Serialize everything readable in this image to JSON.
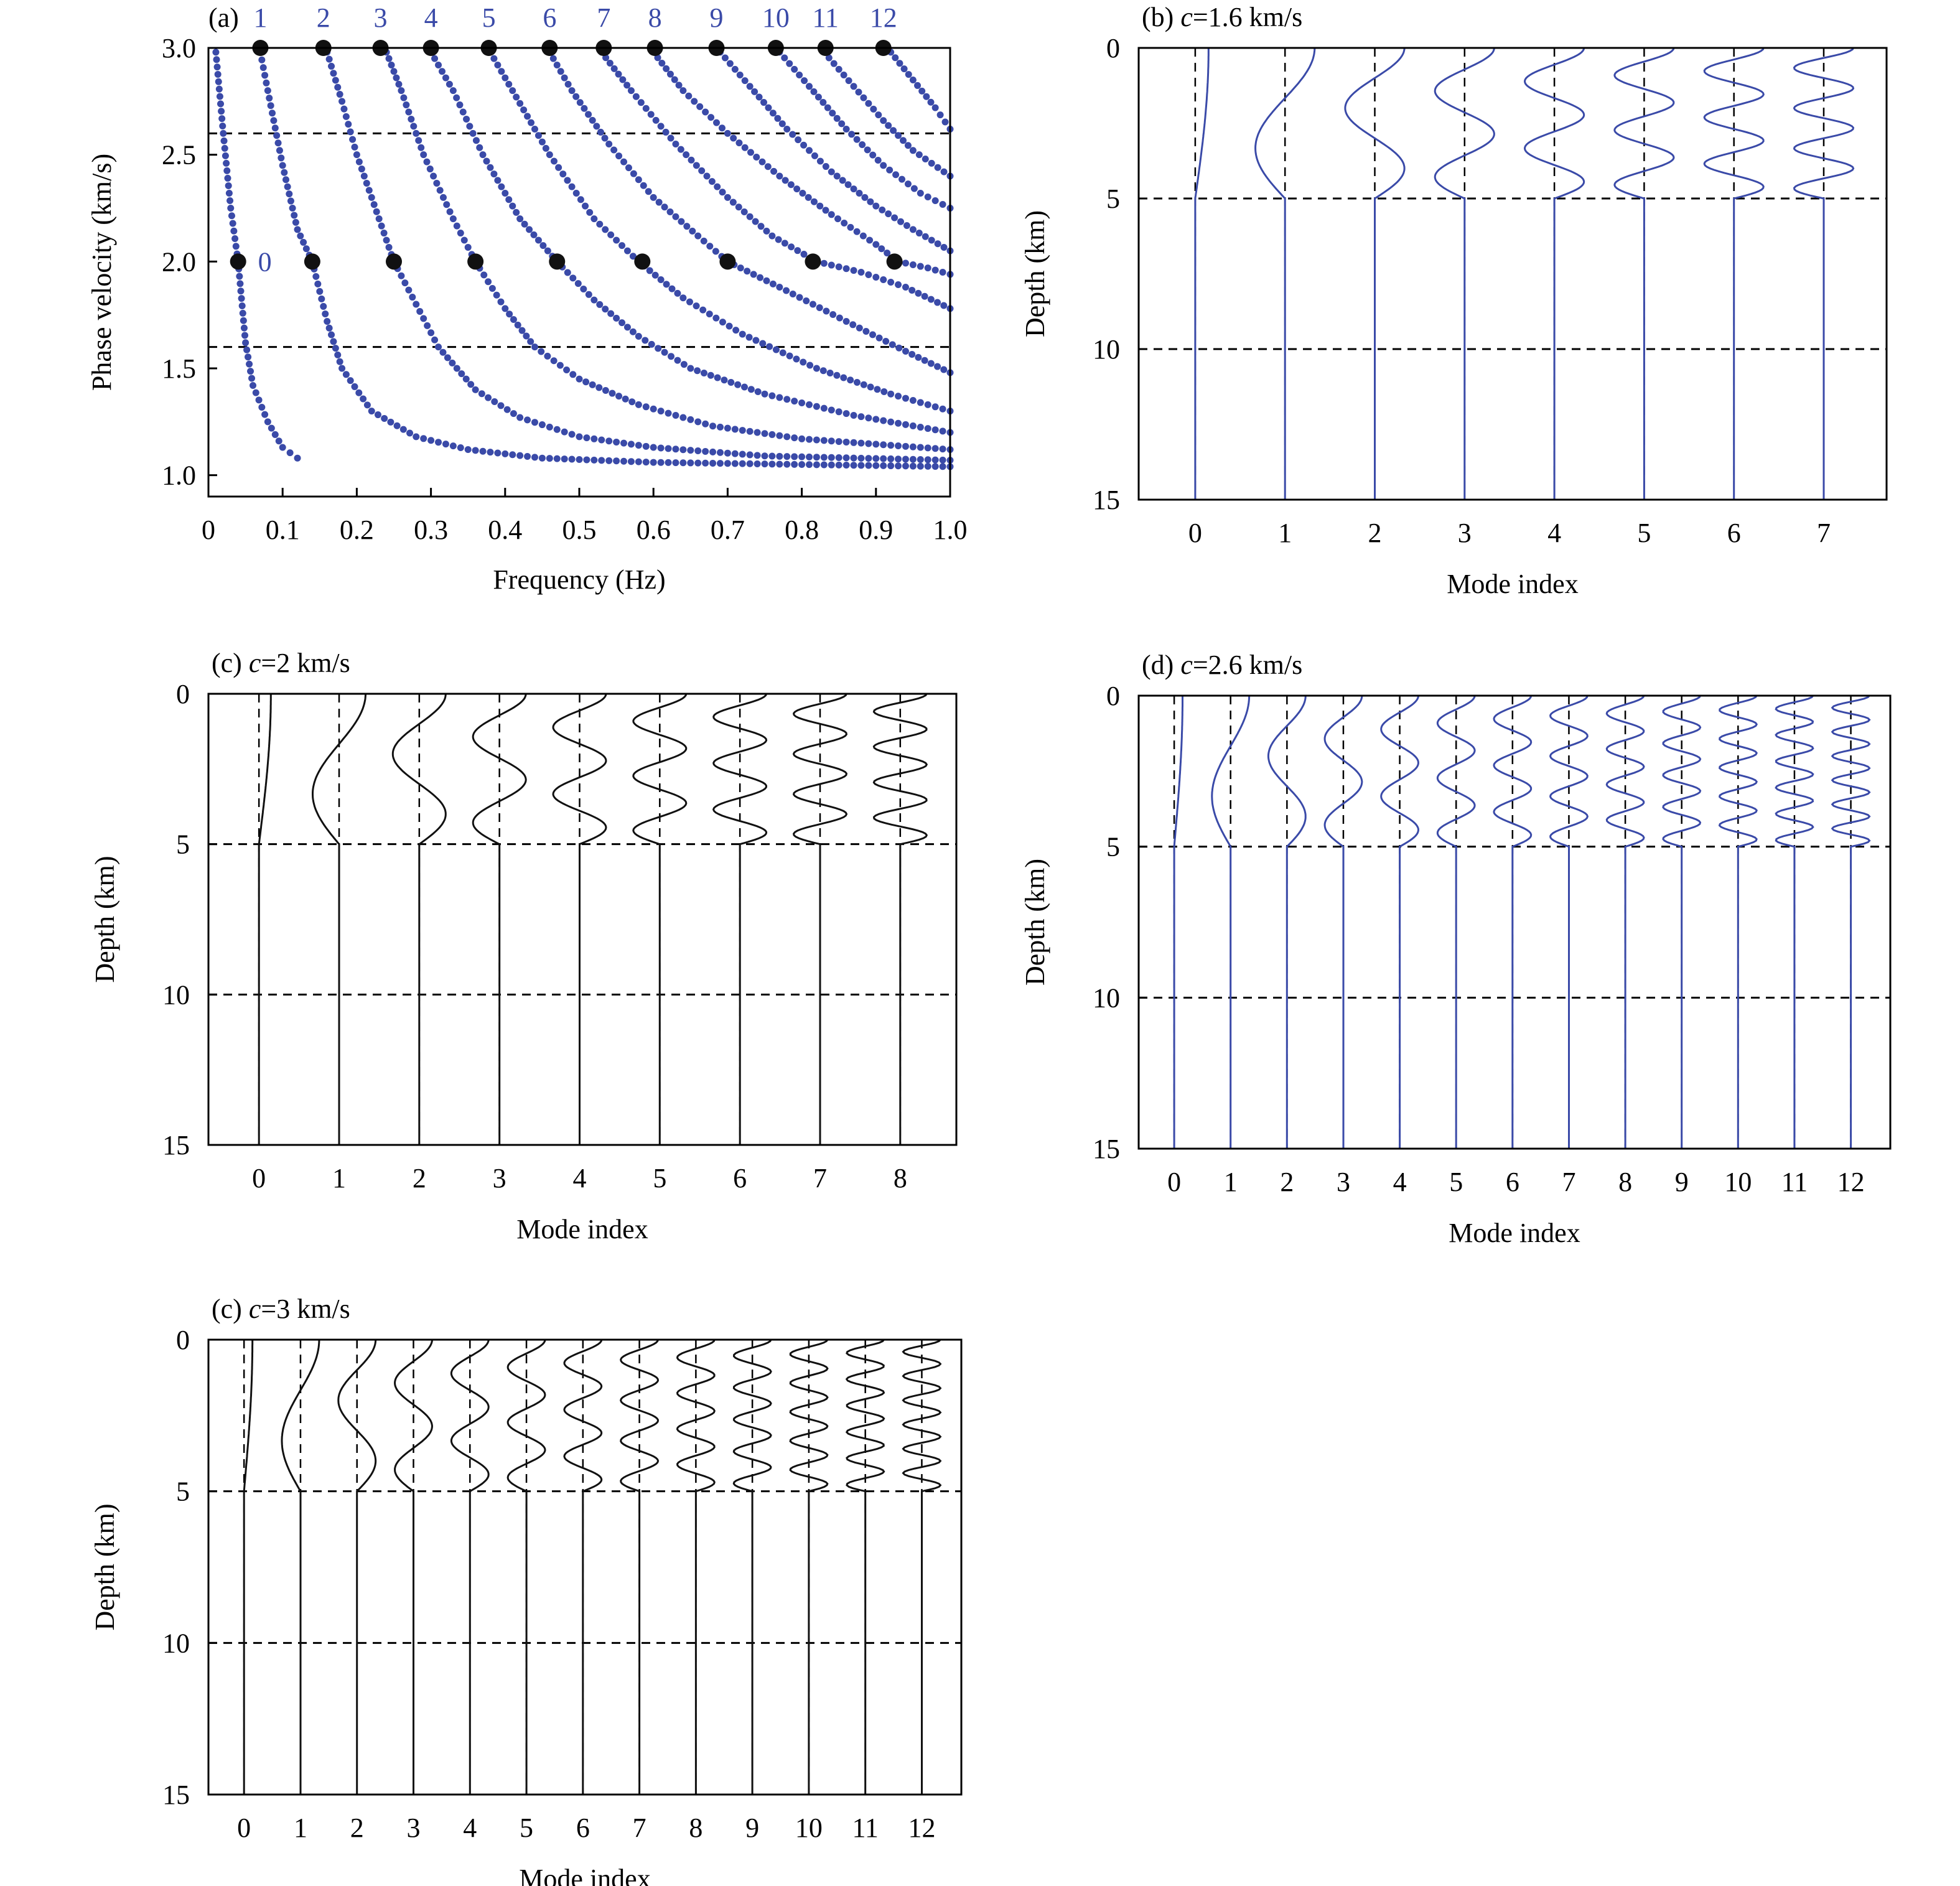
{
  "colors": {
    "blue": "#3a4aa8",
    "black": "#111111",
    "axis": "#000000"
  },
  "chart_data": [
    {
      "id": "a",
      "type": "scatter",
      "panel_label": "(a)",
      "xlabel": "Frequency (Hz)",
      "ylabel": "Phase velocity (km/s)",
      "xlim": [
        0,
        1.0
      ],
      "ylim": [
        0.9,
        3.0
      ],
      "xticks": [
        0,
        0.1,
        0.2,
        0.3,
        0.4,
        0.5,
        0.6,
        0.7,
        0.8,
        0.9,
        1.0
      ],
      "xtick_labels": [
        "0",
        "0.1",
        "0.2",
        "0.3",
        "0.4",
        "0.5",
        "0.6",
        "0.7",
        "0.8",
        "0.9",
        "1.0"
      ],
      "yticks": [
        1.0,
        1.5,
        2.0,
        2.5,
        3.0
      ],
      "ytick_labels": [
        "1.0",
        "1.5",
        "2.0",
        "2.5",
        "3.0"
      ],
      "hlines": [
        2.6,
        1.6
      ],
      "mode_labels_top": [
        "1",
        "2",
        "3",
        "4",
        "5",
        "6",
        "7",
        "8",
        "9",
        "10",
        "11",
        "12"
      ],
      "mode_label_zero": "0",
      "series": [
        {
          "mode": 0,
          "points": [
            [
              0.01,
              2.98
            ],
            [
              0.02,
              2.6
            ],
            [
              0.03,
              2.25
            ],
            [
              0.04,
              2.0
            ],
            [
              0.05,
              1.62
            ],
            [
              0.06,
              1.42
            ],
            [
              0.08,
              1.25
            ],
            [
              0.1,
              1.13
            ],
            [
              0.12,
              1.08
            ]
          ]
        },
        {
          "mode": 1,
          "points": [
            [
              0.07,
              2.98
            ],
            [
              0.08,
              2.8
            ],
            [
              0.1,
              2.45
            ],
            [
              0.12,
              2.15
            ],
            [
              0.14,
              2.0
            ],
            [
              0.16,
              1.72
            ],
            [
              0.18,
              1.5
            ],
            [
              0.22,
              1.3
            ],
            [
              0.28,
              1.18
            ],
            [
              0.35,
              1.12
            ],
            [
              0.45,
              1.08
            ],
            [
              0.6,
              1.06
            ],
            [
              0.8,
              1.05
            ],
            [
              1.0,
              1.04
            ]
          ]
        },
        {
          "mode": 2,
          "points": [
            [
              0.16,
              2.98
            ],
            [
              0.18,
              2.75
            ],
            [
              0.2,
              2.5
            ],
            [
              0.23,
              2.2
            ],
            [
              0.25,
              2.0
            ],
            [
              0.28,
              1.8
            ],
            [
              0.31,
              1.6
            ],
            [
              0.36,
              1.4
            ],
            [
              0.42,
              1.27
            ],
            [
              0.5,
              1.18
            ],
            [
              0.6,
              1.13
            ],
            [
              0.75,
              1.09
            ],
            [
              1.0,
              1.07
            ]
          ]
        },
        {
          "mode": 3,
          "points": [
            [
              0.24,
              2.98
            ],
            [
              0.26,
              2.8
            ],
            [
              0.29,
              2.5
            ],
            [
              0.33,
              2.2
            ],
            [
              0.36,
              2.0
            ],
            [
              0.4,
              1.78
            ],
            [
              0.44,
              1.6
            ],
            [
              0.5,
              1.45
            ],
            [
              0.58,
              1.33
            ],
            [
              0.68,
              1.23
            ],
            [
              0.8,
              1.17
            ],
            [
              1.0,
              1.12
            ]
          ]
        },
        {
          "mode": 4,
          "points": [
            [
              0.3,
              2.98
            ],
            [
              0.33,
              2.8
            ],
            [
              0.37,
              2.5
            ],
            [
              0.42,
              2.2
            ],
            [
              0.47,
              2.0
            ],
            [
              0.52,
              1.82
            ],
            [
              0.58,
              1.65
            ],
            [
              0.65,
              1.5
            ],
            [
              0.75,
              1.38
            ],
            [
              0.87,
              1.28
            ],
            [
              1.0,
              1.2
            ]
          ]
        },
        {
          "mode": 5,
          "points": [
            [
              0.38,
              2.98
            ],
            [
              0.41,
              2.8
            ],
            [
              0.46,
              2.5
            ],
            [
              0.52,
              2.2
            ],
            [
              0.58,
              2.0
            ],
            [
              0.64,
              1.83
            ],
            [
              0.72,
              1.66
            ],
            [
              0.82,
              1.5
            ],
            [
              0.92,
              1.38
            ],
            [
              1.0,
              1.3
            ]
          ]
        },
        {
          "mode": 6,
          "points": [
            [
              0.46,
              2.98
            ],
            [
              0.49,
              2.8
            ],
            [
              0.54,
              2.55
            ],
            [
              0.6,
              2.3
            ],
            [
              0.66,
              2.12
            ],
            [
              0.7,
              2.0
            ],
            [
              0.77,
              1.88
            ],
            [
              0.86,
              1.72
            ],
            [
              0.94,
              1.58
            ],
            [
              1.0,
              1.48
            ]
          ]
        },
        {
          "mode": 7,
          "points": [
            [
              0.53,
              2.98
            ],
            [
              0.57,
              2.8
            ],
            [
              0.63,
              2.55
            ],
            [
              0.7,
              2.3
            ],
            [
              0.76,
              2.12
            ],
            [
              0.82,
              2.0
            ],
            [
              0.88,
              1.95
            ],
            [
              0.94,
              1.88
            ],
            [
              1.0,
              1.78
            ]
          ]
        },
        {
          "mode": 8,
          "points": [
            [
              0.6,
              2.98
            ],
            [
              0.64,
              2.8
            ],
            [
              0.7,
              2.6
            ],
            [
              0.77,
              2.4
            ],
            [
              0.84,
              2.22
            ],
            [
              0.9,
              2.08
            ],
            [
              0.93,
              2.0
            ],
            [
              0.97,
              1.97
            ],
            [
              1.0,
              1.94
            ]
          ]
        },
        {
          "mode": 9,
          "points": [
            [
              0.69,
              2.98
            ],
            [
              0.73,
              2.82
            ],
            [
              0.78,
              2.62
            ],
            [
              0.84,
              2.42
            ],
            [
              0.9,
              2.26
            ],
            [
              0.95,
              2.15
            ],
            [
              1.0,
              2.05
            ]
          ]
        },
        {
          "mode": 10,
          "points": [
            [
              0.77,
              2.98
            ],
            [
              0.81,
              2.82
            ],
            [
              0.86,
              2.62
            ],
            [
              0.91,
              2.45
            ],
            [
              0.96,
              2.32
            ],
            [
              1.0,
              2.25
            ]
          ]
        },
        {
          "mode": 11,
          "points": [
            [
              0.83,
              2.98
            ],
            [
              0.87,
              2.82
            ],
            [
              0.91,
              2.66
            ],
            [
              0.95,
              2.52
            ],
            [
              1.0,
              2.4
            ]
          ]
        },
        {
          "mode": 12,
          "points": [
            [
              0.92,
              2.98
            ],
            [
              0.95,
              2.85
            ],
            [
              0.98,
              2.72
            ],
            [
              1.0,
              2.62
            ]
          ]
        }
      ],
      "highlight_points": [
        [
          0.07,
          3.0
        ],
        [
          0.155,
          3.0
        ],
        [
          0.232,
          3.0
        ],
        [
          0.3,
          3.0
        ],
        [
          0.378,
          3.0
        ],
        [
          0.46,
          3.0
        ],
        [
          0.533,
          3.0
        ],
        [
          0.602,
          3.0
        ],
        [
          0.685,
          3.0
        ],
        [
          0.765,
          3.0
        ],
        [
          0.832,
          3.0
        ],
        [
          0.91,
          3.0
        ],
        [
          0.04,
          2.0
        ],
        [
          0.14,
          2.0
        ],
        [
          0.25,
          2.0
        ],
        [
          0.36,
          2.0
        ],
        [
          0.47,
          2.0
        ],
        [
          0.585,
          2.0
        ],
        [
          0.7,
          2.0
        ],
        [
          0.815,
          2.0
        ],
        [
          0.925,
          2.0
        ]
      ]
    },
    {
      "id": "b",
      "type": "line",
      "panel_label": "(b)",
      "title_var": "c",
      "title_rest": "=1.6 km/s",
      "xlabel": "Mode index",
      "ylabel": "Depth (km)",
      "ylim": [
        0,
        15
      ],
      "yticks": [
        0,
        5,
        10,
        15
      ],
      "ytick_labels": [
        "0",
        "5",
        "10",
        "15"
      ],
      "hlines": [
        5,
        10
      ],
      "modes": 8,
      "color": "blue",
      "xtick_labels": [
        "0",
        "1",
        "2",
        "3",
        "4",
        "5",
        "6",
        "7"
      ]
    },
    {
      "id": "c1",
      "type": "line",
      "panel_label": "(c)",
      "title_var": "c",
      "title_rest": "=2 km/s",
      "xlabel": "Mode index",
      "ylabel": "Depth (km)",
      "ylim": [
        0,
        15
      ],
      "yticks": [
        0,
        5,
        10,
        15
      ],
      "ytick_labels": [
        "0",
        "5",
        "10",
        "15"
      ],
      "hlines": [
        5,
        10
      ],
      "modes": 9,
      "color": "black",
      "xtick_labels": [
        "0",
        "1",
        "2",
        "3",
        "4",
        "5",
        "6",
        "7",
        "8"
      ]
    },
    {
      "id": "d",
      "type": "line",
      "panel_label": "(d)",
      "title_var": "c",
      "title_rest": "=2.6 km/s",
      "xlabel": "Mode index",
      "ylabel": "Depth (km)",
      "ylim": [
        0,
        15
      ],
      "yticks": [
        0,
        5,
        10,
        15
      ],
      "ytick_labels": [
        "0",
        "5",
        "10",
        "15"
      ],
      "hlines": [
        5,
        10
      ],
      "modes": 13,
      "color": "blue",
      "xtick_labels": [
        "0",
        "1",
        "2",
        "3",
        "4",
        "5",
        "6",
        "7",
        "8",
        "9",
        "10",
        "11",
        "12"
      ]
    },
    {
      "id": "c2",
      "type": "line",
      "panel_label": "(c)",
      "title_var": "c",
      "title_rest": "=3 km/s",
      "xlabel": "Mode index",
      "ylabel": "Depth (km)",
      "ylim": [
        0,
        15
      ],
      "yticks": [
        0,
        5,
        10,
        15
      ],
      "ytick_labels": [
        "0",
        "5",
        "10",
        "15"
      ],
      "hlines": [
        5,
        10
      ],
      "modes": 13,
      "color": "black",
      "xtick_labels": [
        "0",
        "1",
        "2",
        "3",
        "4",
        "5",
        "6",
        "7",
        "8",
        "9",
        "10",
        "11",
        "12"
      ]
    }
  ]
}
